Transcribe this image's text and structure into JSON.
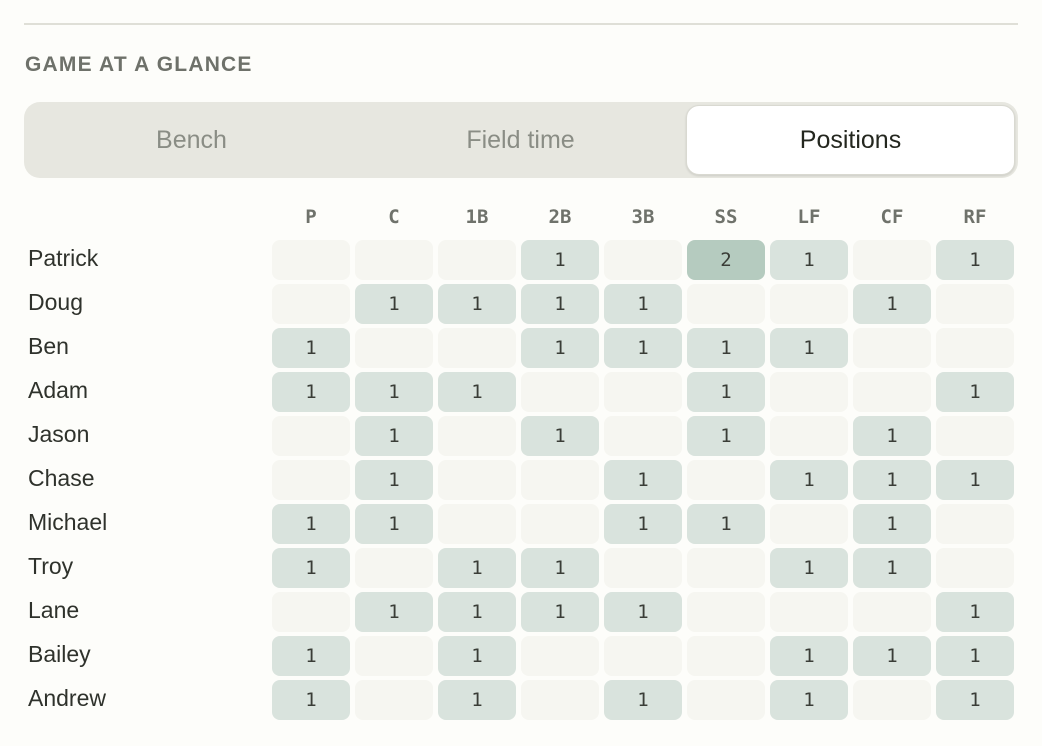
{
  "section_title": "GAME AT A GLANCE",
  "tabs": [
    {
      "label": "Bench",
      "active": false
    },
    {
      "label": "Field time",
      "active": false
    },
    {
      "label": "Positions",
      "active": true
    }
  ],
  "columns": [
    "P",
    "C",
    "1B",
    "2B",
    "3B",
    "SS",
    "LF",
    "CF",
    "RF"
  ],
  "rows": [
    {
      "name": "Patrick",
      "values": [
        "",
        "",
        "",
        "1",
        "",
        "2",
        "1",
        "",
        "1"
      ]
    },
    {
      "name": "Doug",
      "values": [
        "",
        "1",
        "1",
        "1",
        "1",
        "",
        "",
        "1",
        ""
      ]
    },
    {
      "name": "Ben",
      "values": [
        "1",
        "",
        "",
        "1",
        "1",
        "1",
        "1",
        "",
        ""
      ]
    },
    {
      "name": "Adam",
      "values": [
        "1",
        "1",
        "1",
        "",
        "",
        "1",
        "",
        "",
        "1"
      ]
    },
    {
      "name": "Jason",
      "values": [
        "",
        "1",
        "",
        "1",
        "",
        "1",
        "",
        "1",
        ""
      ]
    },
    {
      "name": "Chase",
      "values": [
        "",
        "1",
        "",
        "",
        "1",
        "",
        "1",
        "1",
        "1"
      ]
    },
    {
      "name": "Michael",
      "values": [
        "1",
        "1",
        "",
        "",
        "1",
        "1",
        "",
        "1",
        ""
      ]
    },
    {
      "name": "Troy",
      "values": [
        "1",
        "",
        "1",
        "1",
        "",
        "",
        "1",
        "1",
        ""
      ]
    },
    {
      "name": "Lane",
      "values": [
        "",
        "1",
        "1",
        "1",
        "1",
        "",
        "",
        "",
        "1"
      ]
    },
    {
      "name": "Bailey",
      "values": [
        "1",
        "",
        "1",
        "",
        "",
        "",
        "1",
        "1",
        "1"
      ]
    },
    {
      "name": "Andrew",
      "values": [
        "1",
        "",
        "1",
        "",
        "1",
        "",
        "1",
        "",
        "1"
      ]
    }
  ],
  "colors": {
    "cell_empty": "#f6f6f1",
    "cell_one": "#d9e3dd",
    "cell_two": "#b5cbbf"
  }
}
